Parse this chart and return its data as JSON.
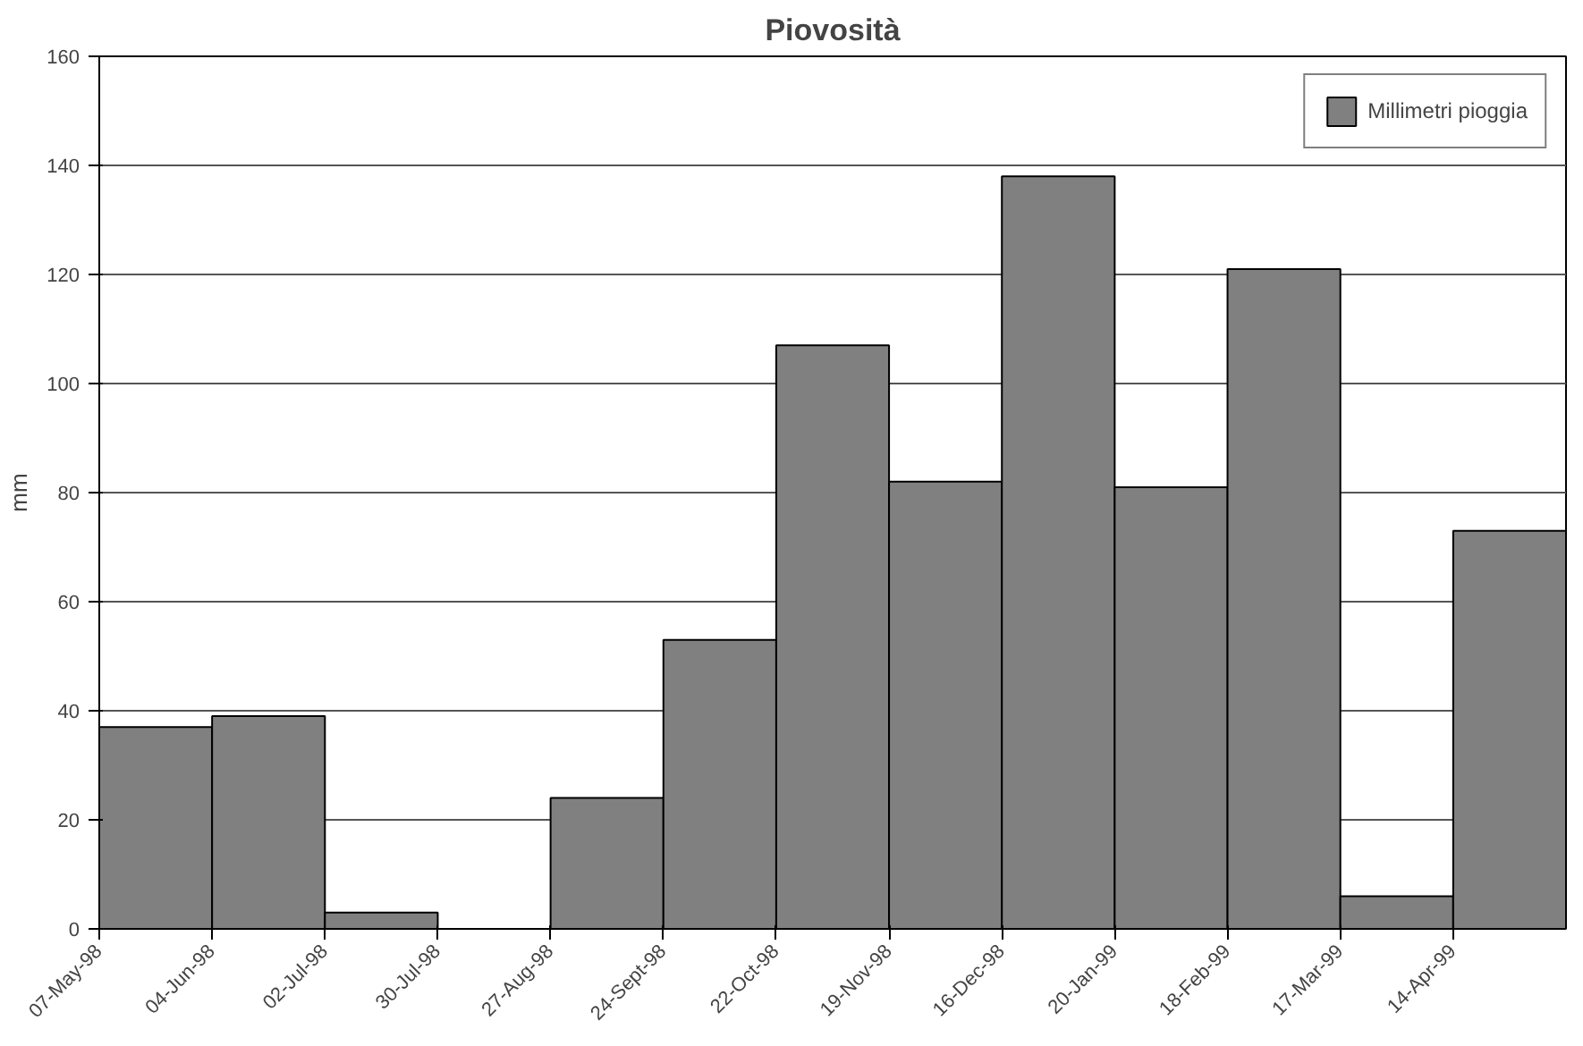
{
  "chart_data": {
    "type": "bar",
    "title": "Piovosità",
    "ylabel": "mm",
    "categories": [
      "07-May-98",
      "04-Jun-98",
      "02-Jul-98",
      "30-Jul-98",
      "27-Aug-98",
      "24-Sept-98",
      "22-Oct-98",
      "19-Nov-98",
      "16-Dec-98",
      "20-Jan-99",
      "18-Feb-99",
      "17-Mar-99",
      "14-Apr-99"
    ],
    "series": [
      {
        "name": "Millimetri pioggia",
        "color": "#808080",
        "values": [
          37,
          39,
          3,
          null,
          24,
          53,
          107,
          82,
          138,
          81,
          121,
          6,
          73
        ]
      }
    ],
    "ylim": [
      0,
      160
    ],
    "yticks": [
      0,
      20,
      40,
      60,
      80,
      100,
      120,
      140,
      160
    ],
    "grid": "y",
    "legend": "top right"
  }
}
